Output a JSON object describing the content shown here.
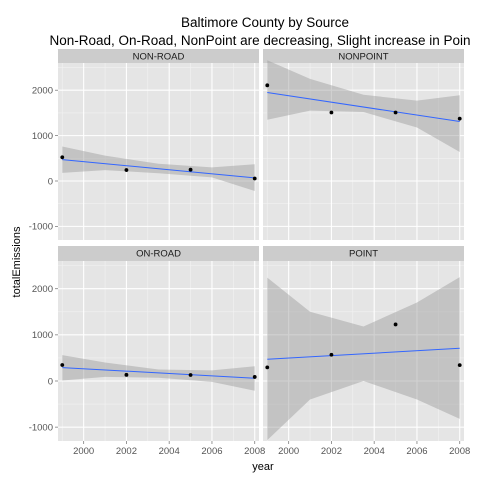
{
  "chart_data": {
    "type": "scatter",
    "title": "Baltimore County by Source",
    "subtitle": "Non-Road, On-Road, NonPoint are decreasing, Slight increase in Poin",
    "xlabel": "year",
    "ylabel": "totalEmissions",
    "x_ticks": [
      2000,
      2002,
      2004,
      2006,
      2008
    ],
    "y_ticks": [
      -1000,
      0,
      1000,
      2000
    ],
    "xlim": [
      1998.8,
      2008.2
    ],
    "ylim": [
      -1300,
      2600
    ],
    "grid": true,
    "smooth": "linear fit with confidence band",
    "colors": {
      "panel_bg": "#e5e5e5",
      "strip_bg": "#cccccc",
      "grid_major": "#ffffff",
      "grid_minor": "#f2f2f2",
      "line": "#3366ff",
      "band": "#999999",
      "point": "#000000"
    },
    "panels": [
      {
        "label": "NON-ROAD",
        "points": [
          {
            "x": 1999,
            "y": 522
          },
          {
            "x": 2002,
            "y": 241
          },
          {
            "x": 2005,
            "y": 249
          },
          {
            "x": 2008,
            "y": 55
          }
        ],
        "fit": {
          "y0": 470,
          "y1": 70
        },
        "band": [
          {
            "x": 1999,
            "lo": 180,
            "hi": 760
          },
          {
            "x": 2001,
            "lo": 240,
            "hi": 560
          },
          {
            "x": 2003.5,
            "lo": 170,
            "hi": 380
          },
          {
            "x": 2006,
            "lo": 80,
            "hi": 300
          },
          {
            "x": 2008,
            "lo": -220,
            "hi": 370
          }
        ]
      },
      {
        "label": "NONPOINT",
        "points": [
          {
            "x": 1999,
            "y": 2108
          },
          {
            "x": 2002,
            "y": 1510
          },
          {
            "x": 2005,
            "y": 1510
          },
          {
            "x": 2008,
            "y": 1373
          }
        ],
        "fit": {
          "y0": 1950,
          "y1": 1310
        },
        "band": [
          {
            "x": 1999,
            "lo": 1350,
            "hi": 2660
          },
          {
            "x": 2001,
            "lo": 1550,
            "hi": 2250
          },
          {
            "x": 2003.5,
            "lo": 1520,
            "hi": 1900
          },
          {
            "x": 2006,
            "lo": 1180,
            "hi": 1770
          },
          {
            "x": 2008,
            "lo": 640,
            "hi": 1890
          }
        ]
      },
      {
        "label": "ON-ROAD",
        "points": [
          {
            "x": 1999,
            "y": 347
          },
          {
            "x": 2002,
            "y": 134
          },
          {
            "x": 2005,
            "y": 130
          },
          {
            "x": 2008,
            "y": 88
          }
        ],
        "fit": {
          "y0": 290,
          "y1": 60
        },
        "band": [
          {
            "x": 1999,
            "lo": 10,
            "hi": 560
          },
          {
            "x": 2001,
            "lo": 90,
            "hi": 400
          },
          {
            "x": 2003.5,
            "lo": 70,
            "hi": 250
          },
          {
            "x": 2006,
            "lo": -20,
            "hi": 230
          },
          {
            "x": 2008,
            "lo": -210,
            "hi": 320
          }
        ]
      },
      {
        "label": "POINT",
        "points": [
          {
            "x": 1999,
            "y": 296
          },
          {
            "x": 2002,
            "y": 569
          },
          {
            "x": 2005,
            "y": 1225
          },
          {
            "x": 2008,
            "y": 344
          }
        ],
        "fit": {
          "y0": 470,
          "y1": 710
        },
        "band": [
          {
            "x": 1999,
            "lo": -1280,
            "hi": 2240
          },
          {
            "x": 2001,
            "lo": -400,
            "hi": 1500
          },
          {
            "x": 2003.5,
            "lo": 0,
            "hi": 1180
          },
          {
            "x": 2006,
            "lo": -400,
            "hi": 1700
          },
          {
            "x": 2008,
            "lo": -820,
            "hi": 2250
          }
        ]
      }
    ]
  }
}
